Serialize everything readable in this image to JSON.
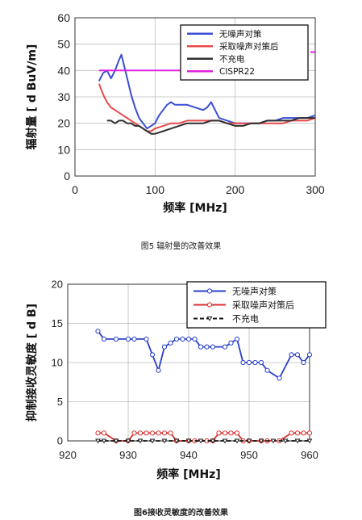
{
  "chart_data": [
    {
      "type": "line",
      "caption": "图5 辐射量的改善效果",
      "xlabel": "频率 [MHz]",
      "ylabel": "辐射量 [ d BuV/m]",
      "xlim": [
        0,
        300
      ],
      "ylim": [
        0,
        60
      ],
      "xticks": [
        0,
        100,
        200,
        300
      ],
      "yticks": [
        0,
        10,
        20,
        30,
        40,
        50,
        60
      ],
      "grid": true,
      "legend_position": "top-right",
      "series": [
        {
          "name": "无噪声对策",
          "color": "#3a4fd6",
          "x": [
            30,
            35,
            40,
            45,
            50,
            55,
            58,
            62,
            66,
            70,
            75,
            80,
            85,
            90,
            95,
            100,
            105,
            110,
            115,
            120,
            125,
            130,
            140,
            150,
            160,
            165,
            170,
            175,
            180,
            190,
            200,
            210,
            220,
            230,
            240,
            250,
            260,
            270,
            280,
            290,
            300
          ],
          "y": [
            36,
            39,
            40,
            37,
            40,
            44,
            46,
            41,
            36,
            31,
            26,
            22,
            20,
            18,
            19,
            20,
            23,
            25,
            27,
            28,
            27,
            27,
            27,
            26,
            25,
            26,
            28,
            25,
            22,
            21,
            20,
            20,
            20,
            20,
            21,
            21,
            22,
            22,
            22,
            22,
            23
          ]
        },
        {
          "name": "采取噪声对策后",
          "color": "#e84a4a",
          "x": [
            30,
            35,
            40,
            45,
            50,
            55,
            60,
            65,
            70,
            75,
            80,
            85,
            90,
            95,
            100,
            110,
            120,
            130,
            140,
            150,
            160,
            170,
            180,
            190,
            200,
            210,
            220,
            230,
            240,
            250,
            260,
            270,
            280,
            290,
            300
          ],
          "y": [
            35,
            31,
            28,
            26,
            25,
            24,
            23,
            22,
            21,
            20,
            19,
            18,
            17,
            17,
            18,
            19,
            20,
            20,
            21,
            21,
            21,
            21,
            21,
            20,
            20,
            20,
            20,
            20,
            20,
            20,
            20,
            21,
            21,
            21,
            22
          ]
        },
        {
          "name": "不充电",
          "color": "#303030",
          "x": [
            40,
            45,
            50,
            55,
            60,
            65,
            70,
            75,
            80,
            85,
            90,
            95,
            100,
            110,
            120,
            130,
            140,
            150,
            160,
            170,
            180,
            190,
            200,
            210,
            220,
            230,
            240,
            250,
            260,
            270,
            280,
            290,
            300
          ],
          "y": [
            21,
            21,
            20,
            21,
            21,
            20,
            20,
            19,
            19,
            18,
            17,
            16,
            16,
            17,
            18,
            19,
            20,
            20,
            20,
            21,
            21,
            20,
            19,
            19,
            20,
            20,
            21,
            21,
            21,
            21,
            22,
            22,
            22
          ]
        },
        {
          "name": "CISPR22",
          "color": "#e020e0",
          "segments": [
            {
              "x": [
                30,
                230
              ],
              "y": [
                40,
                40
              ]
            },
            {
              "x": [
                294,
                300
              ],
              "y": [
                47,
                47
              ]
            }
          ]
        }
      ]
    },
    {
      "type": "line",
      "caption": "图6接收灵敏度的改善效果",
      "xlabel": "频率 [MHz]",
      "ylabel": "抑制接收灵敏度 [ d B]",
      "xlim": [
        920,
        960
      ],
      "ylim": [
        0,
        20
      ],
      "xticks": [
        920,
        930,
        940,
        950,
        960
      ],
      "yticks": [
        0,
        5,
        10,
        15,
        20
      ],
      "grid": true,
      "legend_position": "top-right",
      "series": [
        {
          "name": "无噪声对策",
          "color": "#2a3fc8",
          "marker": "circle",
          "x": [
            925,
            926,
            928,
            930,
            931,
            933,
            934,
            935,
            936,
            937,
            938,
            939,
            940,
            941,
            942,
            943,
            944,
            946,
            947,
            948,
            949,
            950,
            951,
            952,
            953,
            955,
            957,
            958,
            959,
            960
          ],
          "y": [
            14,
            13,
            13,
            13,
            13,
            13,
            11,
            9,
            12,
            12.5,
            13,
            13,
            13,
            13,
            12,
            12,
            12,
            12,
            12.5,
            13,
            10,
            10,
            10,
            10,
            9,
            8,
            11,
            11,
            10,
            11
          ]
        },
        {
          "name": "采取噪声对策后",
          "color": "#d83030",
          "marker": "circle",
          "x": [
            925,
            926,
            928,
            930,
            931,
            932,
            933,
            934,
            935,
            936,
            937,
            938,
            940,
            941,
            943,
            944,
            945,
            946,
            947,
            948,
            949,
            950,
            952,
            953,
            955,
            957,
            958,
            959,
            960
          ],
          "y": [
            1,
            1,
            0,
            0,
            1,
            1,
            1,
            1,
            1,
            1,
            1,
            0,
            0,
            0,
            0,
            0,
            1,
            1,
            1,
            1,
            0,
            0,
            0,
            0,
            0,
            1,
            1,
            1,
            1
          ]
        },
        {
          "name": "不充电",
          "color": "#111111",
          "marker": "triangle",
          "dash": true,
          "x": [
            925,
            926,
            928,
            930,
            932,
            934,
            936,
            938,
            940,
            942,
            944,
            946,
            948,
            950,
            952,
            954,
            956,
            958,
            960
          ],
          "y": [
            0,
            0,
            0,
            0,
            0,
            0,
            0,
            0,
            0,
            0,
            0,
            0,
            0,
            0,
            0,
            0,
            0,
            0,
            0
          ]
        }
      ]
    }
  ]
}
